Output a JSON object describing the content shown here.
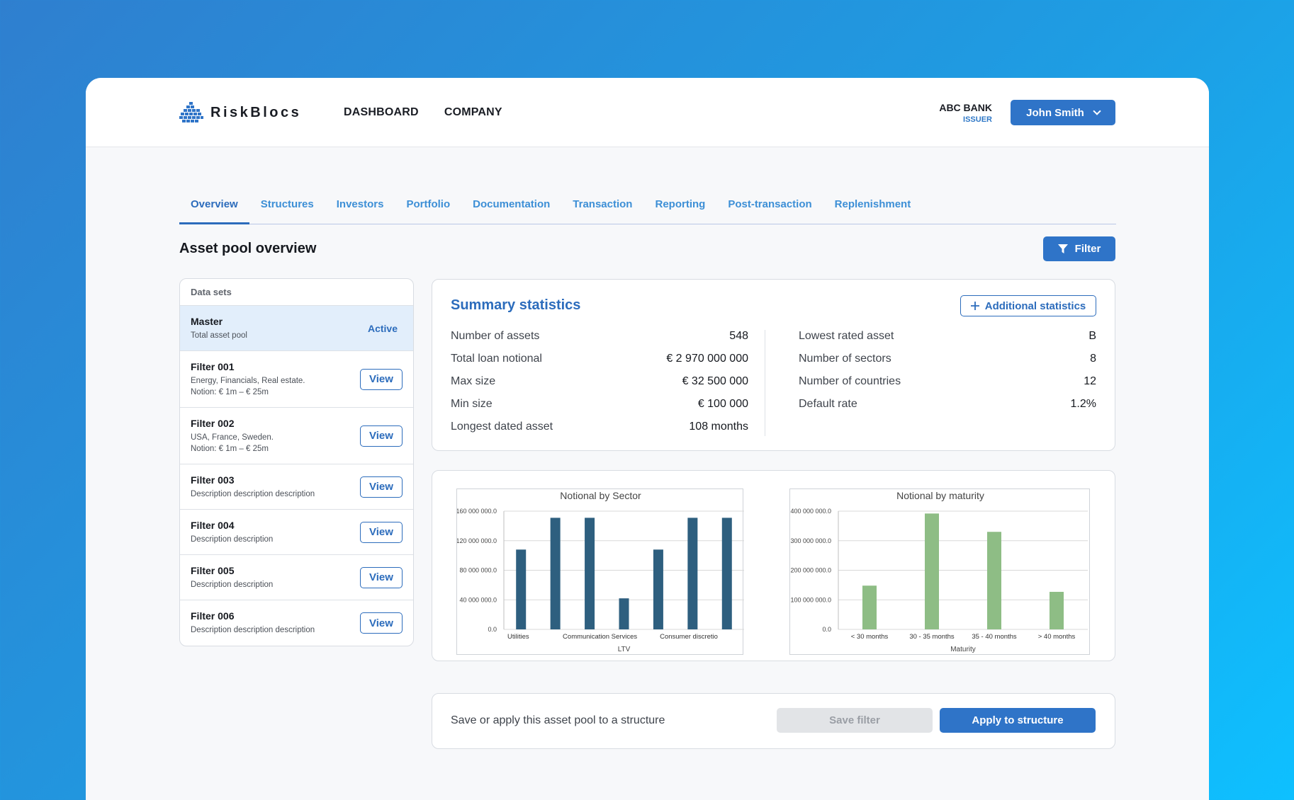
{
  "brand": {
    "name": "RiskBlocs",
    "logo_icon": "stacked-blocks-logo-icon"
  },
  "nav": {
    "items": [
      "DASHBOARD",
      "COMPANY"
    ]
  },
  "org": {
    "name": "ABC BANK",
    "role": "ISSUER"
  },
  "user": {
    "name": "John Smith",
    "icon": "chevron-down-icon"
  },
  "tabs": [
    {
      "label": "Overview",
      "active": true
    },
    {
      "label": "Structures"
    },
    {
      "label": "Investors"
    },
    {
      "label": "Portfolio"
    },
    {
      "label": "Documentation"
    },
    {
      "label": "Transaction"
    },
    {
      "label": "Reporting"
    },
    {
      "label": "Post-transaction"
    },
    {
      "label": "Replenishment"
    }
  ],
  "page": {
    "title": "Asset pool overview",
    "filter_label": "Filter",
    "filter_icon": "funnel-icon"
  },
  "datasets": {
    "header": "Data sets",
    "view_label": "View",
    "items": [
      {
        "title": "Master",
        "desc": "Total asset pool",
        "status": "Active"
      },
      {
        "title": "Filter 001",
        "desc": "Energy, Financials, Real estate.",
        "desc2": "Notion: € 1m – € 25m"
      },
      {
        "title": "Filter 002",
        "desc": "USA, France, Sweden.",
        "desc2": "Notion: € 1m – € 25m"
      },
      {
        "title": "Filter 003",
        "desc": "Description description description"
      },
      {
        "title": "Filter 004",
        "desc": "Description description"
      },
      {
        "title": "Filter 005",
        "desc": "Description description"
      },
      {
        "title": "Filter 006",
        "desc": "Description description description"
      }
    ]
  },
  "summary": {
    "title": "Summary statistics",
    "additional_label": "Additional statistics",
    "additional_icon": "plus-icon",
    "left": [
      {
        "label": "Number of assets",
        "value": "548"
      },
      {
        "label": "Total loan notional",
        "value": "€ 2 970 000 000"
      },
      {
        "label": "Max size",
        "value": "€ 32 500 000"
      },
      {
        "label": "Min size",
        "value": "€ 100 000"
      },
      {
        "label": "Longest dated asset",
        "value": "108 months"
      }
    ],
    "right": [
      {
        "label": "Lowest rated asset",
        "value": "B"
      },
      {
        "label": "Number of sectors",
        "value": "8"
      },
      {
        "label": "Number of countries",
        "value": "12"
      },
      {
        "label": "Default rate",
        "value": "1.2%"
      }
    ]
  },
  "chart_data": [
    {
      "type": "bar",
      "title": "Notional by Sector",
      "xlabel": "LTV",
      "ylabel": "",
      "ylim": [
        0,
        160000000
      ],
      "yticks": [
        "0.0",
        "40 000 000.0",
        "80 000 000.0",
        "120 000 000.0",
        "160 000 000.0"
      ],
      "tick_labels": [
        "Utilities",
        "Communication Services",
        "Consumer discretio"
      ],
      "values": [
        108000000,
        151000000,
        151000000,
        42000000,
        108000000,
        151000000,
        151000000
      ],
      "grid": true,
      "color": "#2e5f7f"
    },
    {
      "type": "bar",
      "title": "Notional by maturity",
      "xlabel": "Maturity",
      "ylabel": "",
      "ylim": [
        0,
        400000000
      ],
      "yticks": [
        "0.0",
        "100 000 000.0",
        "200 000 000.0",
        "300 000 000.0",
        "400 000 000.0"
      ],
      "categories": [
        "< 30 months",
        "30 - 35 months",
        "35 - 40 months",
        "> 40 months"
      ],
      "values": [
        148000000,
        392000000,
        330000000,
        127000000
      ],
      "grid": true,
      "color": "#8ebd85"
    }
  ],
  "bottom": {
    "text": "Save or apply this asset pool to a structure",
    "save_label": "Save filter",
    "apply_label": "Apply to structure"
  }
}
